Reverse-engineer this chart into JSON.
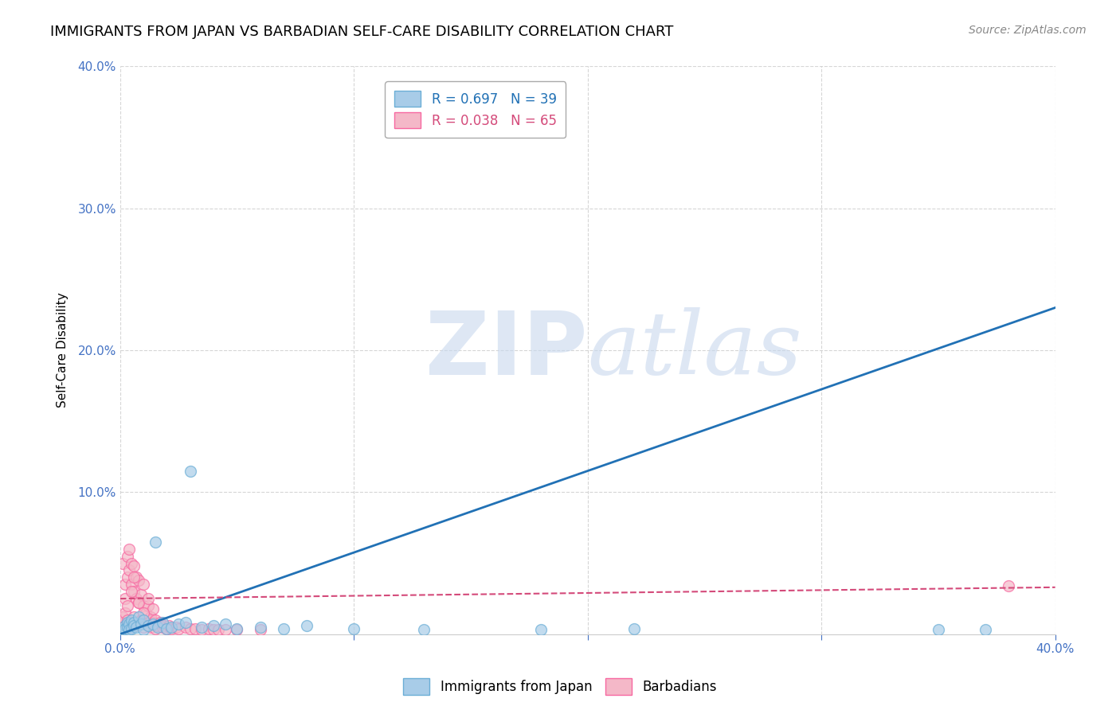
{
  "title": "IMMIGRANTS FROM JAPAN VS BARBADIAN SELF-CARE DISABILITY CORRELATION CHART",
  "source": "Source: ZipAtlas.com",
  "ylabel": "Self-Care Disability",
  "xlim": [
    0.0,
    0.4
  ],
  "ylim": [
    0.0,
    0.4
  ],
  "xticks": [
    0.0,
    0.1,
    0.2,
    0.3,
    0.4
  ],
  "yticks": [
    0.1,
    0.2,
    0.3,
    0.4
  ],
  "xticklabels": [
    "0.0%",
    "",
    "",
    "",
    "40.0%"
  ],
  "yticklabels": [
    "10.0%",
    "20.0%",
    "30.0%",
    "40.0%"
  ],
  "blue_R": 0.697,
  "blue_N": 39,
  "pink_R": 0.038,
  "pink_N": 65,
  "blue_color": "#a8cce8",
  "pink_color": "#f4b8c8",
  "blue_edge_color": "#6baed6",
  "pink_edge_color": "#f768a1",
  "blue_line_color": "#2171b5",
  "pink_line_color": "#d44a7a",
  "legend_text_blue_color": "#2171b5",
  "legend_text_pink_color": "#d44a7a",
  "legend_label_blue": "Immigrants from Japan",
  "legend_label_pink": "Barbadians",
  "blue_scatter_x": [
    0.001,
    0.002,
    0.002,
    0.003,
    0.003,
    0.004,
    0.004,
    0.005,
    0.005,
    0.006,
    0.006,
    0.007,
    0.008,
    0.009,
    0.01,
    0.01,
    0.012,
    0.014,
    0.015,
    0.016,
    0.018,
    0.02,
    0.022,
    0.025,
    0.028,
    0.03,
    0.035,
    0.04,
    0.045,
    0.05,
    0.06,
    0.07,
    0.08,
    0.1,
    0.13,
    0.18,
    0.22,
    0.35,
    0.37
  ],
  "blue_scatter_y": [
    0.003,
    0.006,
    0.004,
    0.008,
    0.005,
    0.007,
    0.003,
    0.01,
    0.004,
    0.008,
    0.006,
    0.005,
    0.012,
    0.007,
    0.003,
    0.01,
    0.006,
    0.007,
    0.065,
    0.005,
    0.008,
    0.004,
    0.005,
    0.007,
    0.008,
    0.115,
    0.005,
    0.006,
    0.007,
    0.004,
    0.005,
    0.004,
    0.006,
    0.004,
    0.003,
    0.003,
    0.004,
    0.003,
    0.003
  ],
  "pink_scatter_x": [
    0.001,
    0.001,
    0.001,
    0.002,
    0.002,
    0.002,
    0.003,
    0.003,
    0.003,
    0.003,
    0.004,
    0.004,
    0.004,
    0.005,
    0.005,
    0.005,
    0.006,
    0.006,
    0.006,
    0.007,
    0.007,
    0.007,
    0.008,
    0.008,
    0.008,
    0.009,
    0.009,
    0.01,
    0.01,
    0.01,
    0.011,
    0.011,
    0.012,
    0.012,
    0.013,
    0.013,
    0.014,
    0.014,
    0.015,
    0.015,
    0.016,
    0.017,
    0.018,
    0.019,
    0.02,
    0.021,
    0.022,
    0.024,
    0.025,
    0.028,
    0.03,
    0.032,
    0.035,
    0.038,
    0.04,
    0.042,
    0.045,
    0.05,
    0.06,
    0.38,
    0.005,
    0.006,
    0.008,
    0.01,
    0.012
  ],
  "pink_scatter_y": [
    0.008,
    0.012,
    0.05,
    0.015,
    0.025,
    0.035,
    0.01,
    0.02,
    0.04,
    0.055,
    0.008,
    0.045,
    0.06,
    0.005,
    0.035,
    0.05,
    0.012,
    0.03,
    0.048,
    0.006,
    0.025,
    0.04,
    0.008,
    0.022,
    0.038,
    0.01,
    0.028,
    0.005,
    0.02,
    0.035,
    0.008,
    0.015,
    0.01,
    0.02,
    0.005,
    0.012,
    0.008,
    0.018,
    0.004,
    0.01,
    0.006,
    0.008,
    0.005,
    0.006,
    0.004,
    0.006,
    0.004,
    0.005,
    0.004,
    0.005,
    0.004,
    0.004,
    0.003,
    0.004,
    0.003,
    0.003,
    0.003,
    0.003,
    0.003,
    0.034,
    0.03,
    0.04,
    0.022,
    0.015,
    0.025
  ],
  "blue_trendline_x": [
    0.0,
    0.4
  ],
  "blue_trendline_y": [
    0.0,
    0.23
  ],
  "pink_trendline_x": [
    0.0,
    0.4
  ],
  "pink_trendline_y": [
    0.025,
    0.033
  ],
  "watermark_zip": "ZIP",
  "watermark_atlas": "atlas",
  "background_color": "#ffffff",
  "grid_color": "#cccccc",
  "tick_color": "#4472c4",
  "title_fontsize": 13,
  "axis_label_fontsize": 11,
  "tick_fontsize": 11,
  "legend_fontsize": 12,
  "scatter_size": 100
}
